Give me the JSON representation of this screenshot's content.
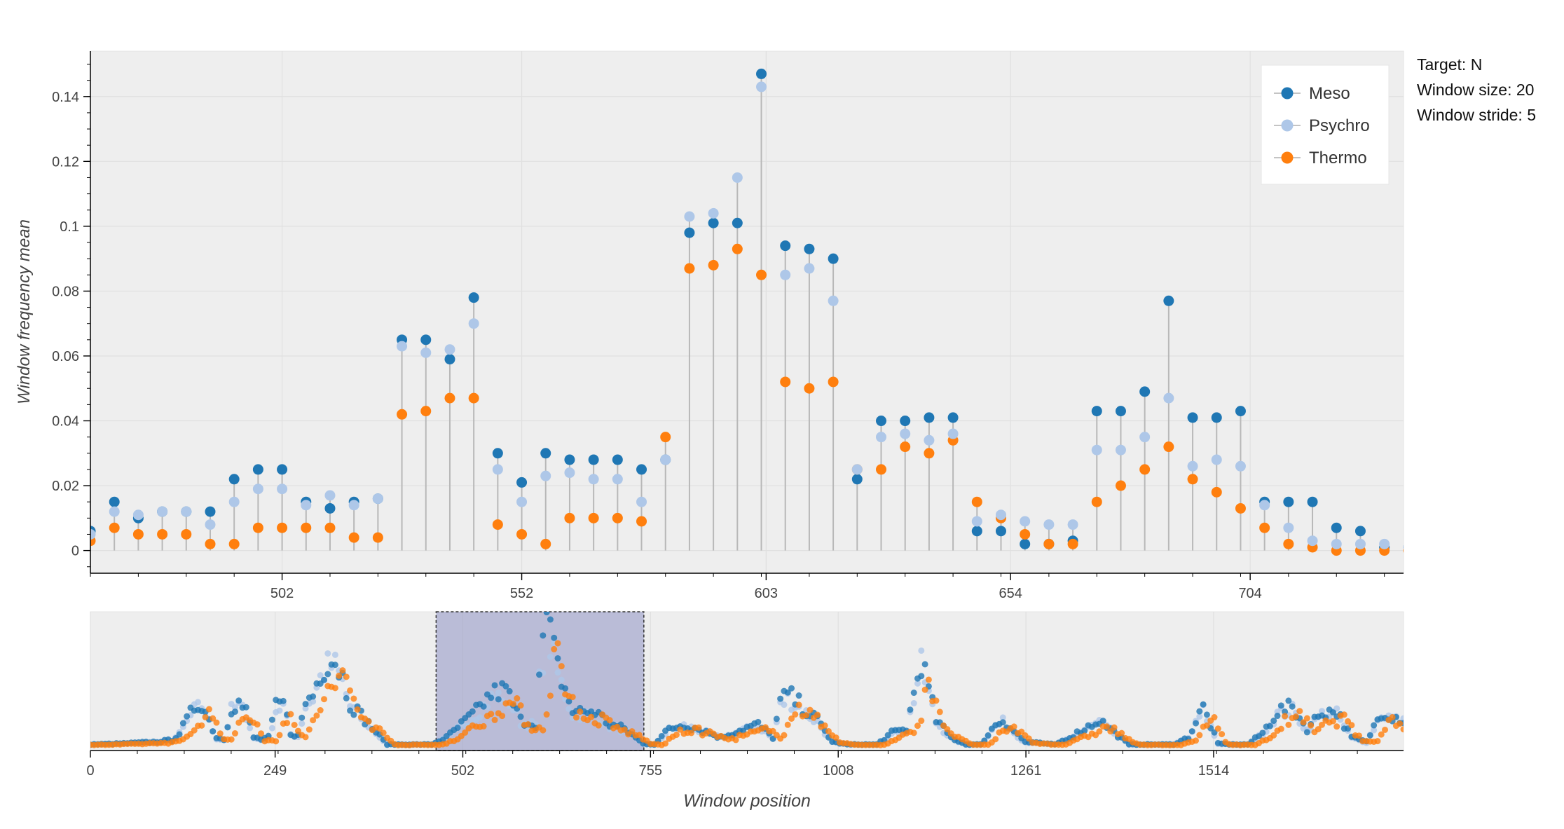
{
  "info": {
    "target": "Target: N",
    "window_size": "Window size: 20",
    "window_stride": "Window stride: 5"
  },
  "chart_data": [
    {
      "type": "scatter",
      "subtype": "lollipop",
      "ylabel": "Window frequency mean",
      "xlabel": "",
      "ylim": [
        -0.007,
        0.154
      ],
      "xlim": [
        462,
        736
      ],
      "x_ticks": [
        502,
        552,
        603,
        654,
        704
      ],
      "y_ticks": [
        0,
        0.02,
        0.04,
        0.06,
        0.08,
        0.1,
        0.12,
        0.14
      ],
      "y_tick_labels": [
        "0",
        "0.02",
        "0.04",
        "0.06",
        "0.08",
        "0.1",
        "0.12",
        "0.14"
      ],
      "grid": true,
      "legend_position": "top-right",
      "x": [
        462,
        467,
        472,
        477,
        482,
        487,
        492,
        497,
        502,
        507,
        512,
        517,
        522,
        527,
        532,
        537,
        542,
        547,
        552,
        557,
        562,
        567,
        572,
        577,
        582,
        587,
        592,
        597,
        602,
        607,
        612,
        617,
        622,
        627,
        632,
        637,
        642,
        647,
        652,
        657,
        662,
        667,
        672,
        677,
        682,
        687,
        692,
        697,
        702,
        707,
        712,
        717,
        722,
        727,
        732,
        737
      ],
      "series": [
        {
          "name": "Meso",
          "color": "#1f77b4",
          "values": [
            0.006,
            0.015,
            0.01,
            0.012,
            0.012,
            0.012,
            0.022,
            0.025,
            0.025,
            0.015,
            0.013,
            0.015,
            0.016,
            0.065,
            0.065,
            0.059,
            0.078,
            0.03,
            0.021,
            0.03,
            0.028,
            0.028,
            0.028,
            0.025,
            0.028,
            0.098,
            0.101,
            0.101,
            0.147,
            0.094,
            0.093,
            0.09,
            0.022,
            0.04,
            0.04,
            0.041,
            0.041,
            0.006,
            0.006,
            0.002,
            0.002,
            0.003,
            0.043,
            0.043,
            0.049,
            0.077,
            0.041,
            0.041,
            0.043,
            0.015,
            0.015,
            0.015,
            0.007,
            0.006,
            0.001,
            0.001
          ]
        },
        {
          "name": "Psychro",
          "color": "#aec7e8",
          "values": [
            0.005,
            0.012,
            0.011,
            0.012,
            0.012,
            0.008,
            0.015,
            0.019,
            0.019,
            0.014,
            0.017,
            0.014,
            0.016,
            0.063,
            0.061,
            0.062,
            0.07,
            0.025,
            0.015,
            0.023,
            0.024,
            0.022,
            0.022,
            0.015,
            0.028,
            0.103,
            0.104,
            0.115,
            0.143,
            0.085,
            0.087,
            0.077,
            0.025,
            0.035,
            0.036,
            0.034,
            0.036,
            0.009,
            0.011,
            0.009,
            0.008,
            0.008,
            0.031,
            0.031,
            0.035,
            0.047,
            0.026,
            0.028,
            0.026,
            0.014,
            0.007,
            0.003,
            0.002,
            0.002,
            0.002,
            0.001
          ]
        },
        {
          "name": "Thermo",
          "color": "#ff7f0e",
          "values": [
            0.003,
            0.007,
            0.005,
            0.005,
            0.005,
            0.002,
            0.002,
            0.007,
            0.007,
            0.007,
            0.007,
            0.004,
            0.004,
            0.042,
            0.043,
            0.047,
            0.047,
            0.008,
            0.005,
            0.002,
            0.01,
            0.01,
            0.01,
            0.009,
            0.035,
            0.087,
            0.088,
            0.093,
            0.085,
            0.052,
            0.05,
            0.052,
            0.025,
            0.025,
            0.032,
            0.03,
            0.034,
            0.015,
            0.01,
            0.005,
            0.002,
            0.002,
            0.015,
            0.02,
            0.025,
            0.032,
            0.022,
            0.018,
            0.013,
            0.007,
            0.002,
            0.001,
            0.0,
            0.0,
            0.0,
            0.0
          ]
        }
      ]
    },
    {
      "type": "scatter",
      "subtype": "overview-range",
      "xlabel": "Window position",
      "ylabel": "",
      "xlim": [
        0,
        1770
      ],
      "ylim": [
        -0.005,
        0.155
      ],
      "x_ticks": [
        0,
        249,
        502,
        755,
        1008,
        1261,
        1514
      ],
      "selected_range": [
        466,
        746
      ],
      "grid": true,
      "profile_knots": {
        "x": [
          0,
          40,
          90,
          110,
          120,
          140,
          150,
          160,
          170,
          180,
          190,
          200,
          210,
          220,
          230,
          240,
          250,
          260,
          270,
          280,
          290,
          300,
          310,
          320,
          330,
          340,
          350,
          400,
          460,
          480,
          500,
          520,
          540,
          560,
          580,
          590,
          600,
          605,
          615,
          630,
          650,
          680,
          700,
          720,
          745,
          760,
          780,
          800,
          820,
          850,
          880,
          900,
          920,
          930,
          940,
          960,
          980,
          1000,
          1020,
          1040,
          1060,
          1080,
          1100,
          1120,
          1140,
          1160,
          1180,
          1200,
          1220,
          1230,
          1260,
          1300,
          1320,
          1340,
          1360,
          1400,
          1460,
          1480,
          1500,
          1520,
          1540,
          1560,
          1580,
          1600,
          1620,
          1640,
          1660,
          1680,
          1700,
          1720,
          1740,
          1770
        ],
        "meso": [
          0.002,
          0.003,
          0.005,
          0.007,
          0.015,
          0.045,
          0.05,
          0.03,
          0.01,
          0.008,
          0.045,
          0.05,
          0.04,
          0.01,
          0.008,
          0.01,
          0.045,
          0.05,
          0.015,
          0.012,
          0.05,
          0.06,
          0.085,
          0.1,
          0.1,
          0.08,
          0.05,
          0.002,
          0.002,
          0.01,
          0.025,
          0.04,
          0.06,
          0.065,
          0.03,
          0.028,
          0.026,
          0.08,
          0.147,
          0.09,
          0.04,
          0.04,
          0.025,
          0.02,
          0.003,
          0.002,
          0.02,
          0.025,
          0.02,
          0.01,
          0.02,
          0.025,
          0.01,
          0.05,
          0.06,
          0.045,
          0.03,
          0.005,
          0.002,
          0.002,
          0.002,
          0.015,
          0.02,
          0.1,
          0.03,
          0.01,
          0.002,
          0.002,
          0.025,
          0.03,
          0.005,
          0.002,
          0.01,
          0.02,
          0.03,
          0.002,
          0.002,
          0.01,
          0.045,
          0.003,
          0.002,
          0.002,
          0.015,
          0.04,
          0.045,
          0.02,
          0.04,
          0.04,
          0.01,
          0.005,
          0.04,
          0.03
        ]
      }
    }
  ]
}
